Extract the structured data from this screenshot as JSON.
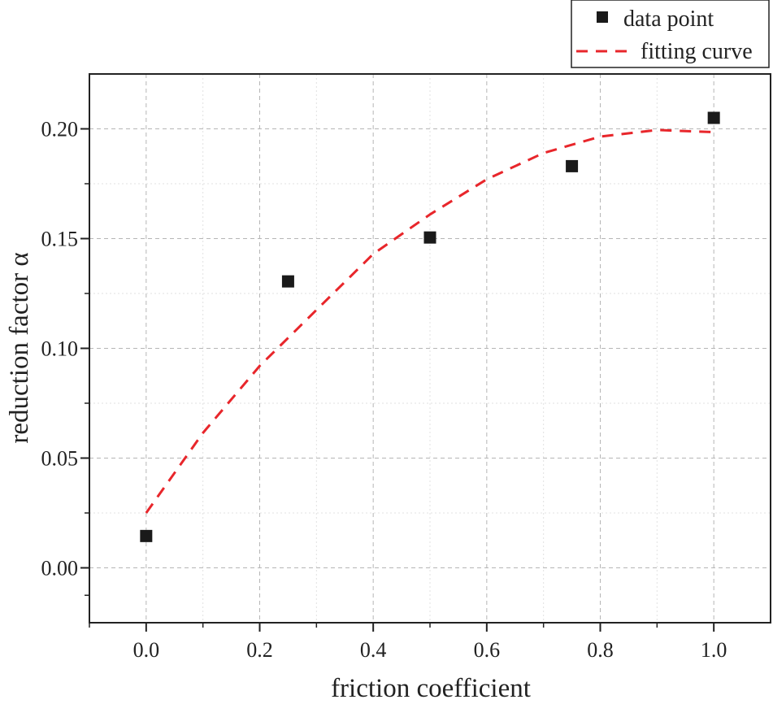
{
  "chart_data": {
    "type": "scatter",
    "title": "",
    "xlabel": "friction coefficient",
    "ylabel": "reduction factor α",
    "xlim": [
      -0.1,
      1.1
    ],
    "ylim": [
      -0.025,
      0.225
    ],
    "xticks": [
      0.0,
      0.2,
      0.4,
      0.6,
      0.8,
      1.0
    ],
    "xtick_labels": [
      "0.0",
      "0.2",
      "0.4",
      "0.6",
      "0.8",
      "1.0"
    ],
    "yticks": [
      0.0,
      0.05,
      0.1,
      0.15,
      0.2
    ],
    "ytick_labels": [
      "0.00",
      "0.05",
      "0.10",
      "0.15",
      "0.20"
    ],
    "grid": true,
    "legend_position": "top-right",
    "series": [
      {
        "name": "data point",
        "kind": "scatter",
        "marker": "square",
        "color": "#1a1a1a",
        "x": [
          0.0,
          0.25,
          0.5,
          0.75,
          1.0
        ],
        "y": [
          0.0145,
          0.1305,
          0.1505,
          0.183,
          0.205
        ]
      },
      {
        "name": "fitting curve",
        "kind": "line",
        "style": "dashed",
        "color": "#e8262b",
        "x": [
          0.0,
          0.1,
          0.2,
          0.3,
          0.4,
          0.5,
          0.6,
          0.7,
          0.8,
          0.9,
          1.0
        ],
        "y": [
          0.025,
          0.0615,
          0.092,
          0.1175,
          0.143,
          0.161,
          0.177,
          0.189,
          0.1965,
          0.1995,
          0.1985
        ]
      }
    ]
  }
}
